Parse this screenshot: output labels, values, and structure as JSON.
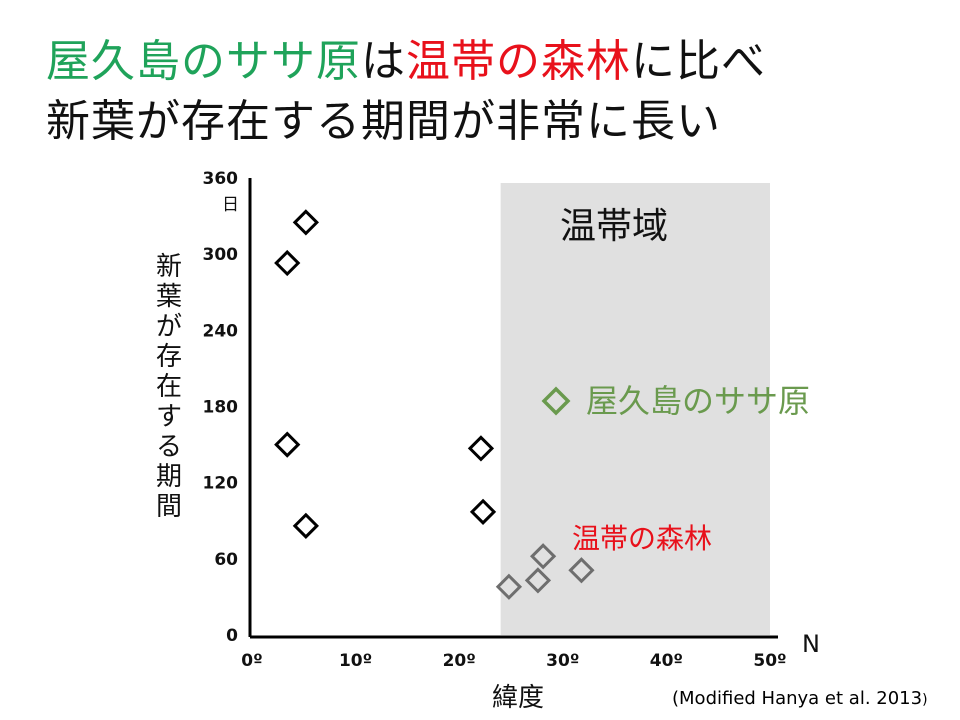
{
  "title": {
    "line1": [
      {
        "text": "屋久島のササ原",
        "color": "#1fa35a"
      },
      {
        "text": "は",
        "color": "#111111"
      },
      {
        "text": "温帯の森林",
        "color": "#e8111b"
      },
      {
        "text": "に比べ",
        "color": "#111111"
      }
    ],
    "line2": "新葉が存在する期間が非常に長い"
  },
  "chart_data": {
    "type": "scatter",
    "xlabel": "緯度",
    "ylabel": "新葉が存在する期間",
    "x_unit": "N",
    "y_unit": "日",
    "xlim": [
      0,
      50
    ],
    "ylim": [
      0,
      360
    ],
    "x_ticks": [
      "0º",
      "10º",
      "20º",
      "30º",
      "40º",
      "50º"
    ],
    "y_ticks": [
      "0",
      "60",
      "120",
      "180",
      "240",
      "300",
      "360"
    ],
    "region": {
      "label": "温帯域",
      "x_range": [
        24,
        50
      ],
      "color": "#e0e0e0"
    },
    "series": [
      {
        "name": "屋久島のササ原",
        "color": "#6a9a4e",
        "marker": "diamond",
        "points": [
          [
            5.2,
            325
          ],
          [
            3.4,
            293
          ],
          [
            3.4,
            150
          ],
          [
            5.2,
            86
          ],
          [
            22.1,
            147
          ],
          [
            22.3,
            97
          ]
        ]
      },
      {
        "name": "温帯の森林",
        "color": "#e8111b",
        "marker_color": "#6e6e6e",
        "marker": "diamond",
        "points": [
          [
            24.8,
            38
          ],
          [
            27.6,
            43
          ],
          [
            28.1,
            62
          ],
          [
            31.8,
            51
          ]
        ]
      }
    ]
  },
  "source": {
    "text": "(Modified Hanya et al. 2013",
    "close": ")"
  }
}
